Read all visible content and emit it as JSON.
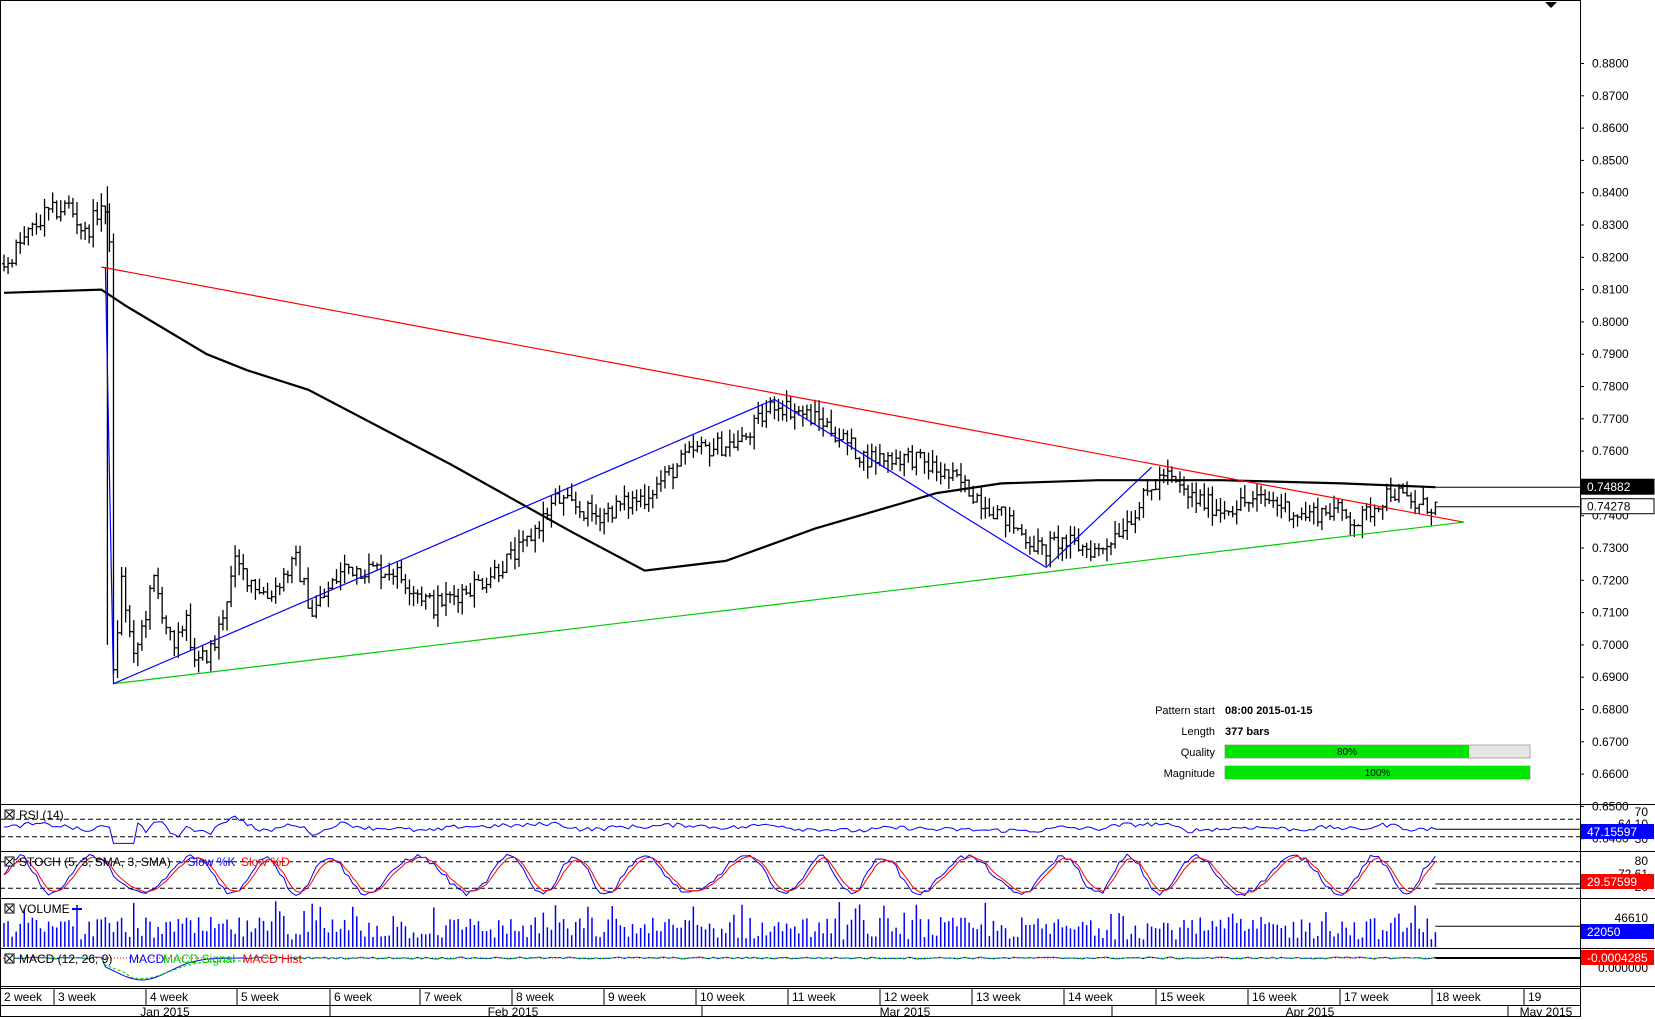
{
  "chart_data": {
    "type": "line",
    "subtype": "ohlc-bars",
    "main": {
      "price_axis_ticks": [
        "0.8800",
        "0.8700",
        "0.8600",
        "0.8500",
        "0.8400",
        "0.8300",
        "0.8200",
        "0.8100",
        "0.8000",
        "0.7900",
        "0.7800",
        "0.7700",
        "0.7600",
        "0.7500",
        "0.7400",
        "0.7300",
        "0.7200",
        "0.7100",
        "0.7000",
        "0.6900",
        "0.6800",
        "0.6700",
        "0.6600",
        "0.6500",
        "0.6400"
      ],
      "ylim": [
        0.64,
        0.885
      ],
      "price_markers": [
        {
          "label": "0.74882",
          "value": 0.74882,
          "style": "black"
        },
        {
          "label": "0.74278",
          "value": 0.74278,
          "style": "white"
        }
      ],
      "price_path": [
        [
          0,
          0.818
        ],
        [
          10,
          0.833
        ],
        [
          16,
          0.836
        ],
        [
          20,
          0.827
        ],
        [
          24,
          0.836
        ],
        [
          26,
          0.827
        ],
        [
          27,
          0.69
        ],
        [
          29,
          0.72
        ],
        [
          32,
          0.695
        ],
        [
          37,
          0.72
        ],
        [
          42,
          0.697
        ],
        [
          45,
          0.71
        ],
        [
          47,
          0.693
        ],
        [
          52,
          0.7
        ],
        [
          57,
          0.725
        ],
        [
          65,
          0.715
        ],
        [
          72,
          0.726
        ],
        [
          76,
          0.71
        ],
        [
          84,
          0.724
        ],
        [
          96,
          0.723
        ],
        [
          106,
          0.712
        ],
        [
          118,
          0.72
        ],
        [
          128,
          0.73
        ],
        [
          136,
          0.745
        ],
        [
          146,
          0.74
        ],
        [
          158,
          0.746
        ],
        [
          170,
          0.76
        ],
        [
          182,
          0.763
        ],
        [
          190,
          0.775
        ],
        [
          202,
          0.769
        ],
        [
          212,
          0.758
        ],
        [
          224,
          0.758
        ],
        [
          236,
          0.75
        ],
        [
          246,
          0.74
        ],
        [
          256,
          0.729
        ],
        [
          260,
          0.732
        ],
        [
          270,
          0.729
        ],
        [
          278,
          0.74
        ],
        [
          286,
          0.753
        ],
        [
          292,
          0.746
        ],
        [
          300,
          0.742
        ],
        [
          306,
          0.744
        ],
        [
          312,
          0.745
        ],
        [
          320,
          0.74
        ],
        [
          328,
          0.742
        ],
        [
          334,
          0.738
        ],
        [
          342,
          0.748
        ],
        [
          348,
          0.743
        ],
        [
          353,
          0.743
        ]
      ],
      "moving_average": [
        [
          0,
          0.809
        ],
        [
          24,
          0.81
        ],
        [
          30,
          0.805
        ],
        [
          50,
          0.79
        ],
        [
          60,
          0.785
        ],
        [
          75,
          0.779
        ],
        [
          110,
          0.756
        ],
        [
          140,
          0.735
        ],
        [
          158,
          0.723
        ],
        [
          178,
          0.726
        ],
        [
          200,
          0.736
        ],
        [
          230,
          0.747
        ],
        [
          246,
          0.75
        ],
        [
          270,
          0.751
        ],
        [
          300,
          0.751
        ],
        [
          330,
          0.75
        ],
        [
          353,
          0.74882
        ]
      ],
      "pattern_lines": [
        {
          "name": "resistance",
          "color": "#ff0000",
          "points": [
            [
              24,
              0.817
            ],
            [
              360,
              0.738
            ]
          ]
        },
        {
          "name": "support",
          "color": "#00cc00",
          "points": [
            [
              27,
              0.688
            ],
            [
              360,
              0.738
            ]
          ]
        },
        {
          "name": "swing",
          "color": "#0000ff",
          "points": [
            [
              25,
              0.817
            ],
            [
              27,
              0.688
            ],
            [
              190,
              0.776
            ],
            [
              257,
              0.724
            ],
            [
              283,
              0.755
            ]
          ]
        }
      ],
      "pattern_info": {
        "start_label": "Pattern start",
        "start_value": "08:00 2015-01-15",
        "length_label": "Length",
        "length_value": "377 bars",
        "quality_label": "Quality",
        "quality_value": "80%",
        "quality_fraction": 0.8,
        "magnitude_label": "Magnitude",
        "magnitude_value": "100%",
        "magnitude_fraction": 1.0
      }
    },
    "panels": [
      {
        "id": "rsi",
        "title": "RSI (14)",
        "ticks": [
          "70",
          "64.10",
          "30"
        ],
        "value_label": "47.15597",
        "value_color": "#0000ff",
        "ylim": [
          0,
          100
        ],
        "levels": [
          70,
          30
        ],
        "last": 47.15597
      },
      {
        "id": "stoch",
        "title": "STOCH (5, 3, SMA, 3, SMA)",
        "legend": [
          {
            "text": "Slow %K",
            "color": "#0000ff"
          },
          {
            "text": "Slow %D",
            "color": "#ff0000"
          }
        ],
        "ticks": [
          "80",
          "72.61",
          "20"
        ],
        "value_label": "29.57599",
        "value_color": "#ff0000",
        "ylim": [
          0,
          100
        ],
        "levels": [
          80,
          20
        ],
        "last": 29.57599
      },
      {
        "id": "volume",
        "title": "VOLUME",
        "ticks": [
          "46610"
        ],
        "value_label": "22050",
        "value_color": "#0000ff",
        "ylim": [
          0,
          50000
        ],
        "last": 22050
      },
      {
        "id": "macd",
        "title": "MACD (12, 26, 9)",
        "legend": [
          {
            "text": "MACD",
            "color": "#0000ff"
          },
          {
            "text": "MACD Signal",
            "color": "#00cc00"
          },
          {
            "text": "MACD Hist",
            "color": "#ff0000"
          }
        ],
        "ticks": [
          "0.000000"
        ],
        "value_label": "-0.0004285",
        "value_color": "#ff0000",
        "last": -0.0004285
      }
    ],
    "time_axis": {
      "weeks": [
        "2 week",
        "3 week",
        "4 week",
        "5 week",
        "6 week",
        "7 week",
        "8 week",
        "9 week",
        "10 week",
        "11 week",
        "12 week",
        "13 week",
        "14 week",
        "15 week",
        "16 week",
        "17 week",
        "18 week",
        "19"
      ],
      "months": [
        "Jan 2015",
        "Feb 2015",
        "Mar 2015",
        "Apr 2015",
        "May 2015"
      ]
    }
  }
}
